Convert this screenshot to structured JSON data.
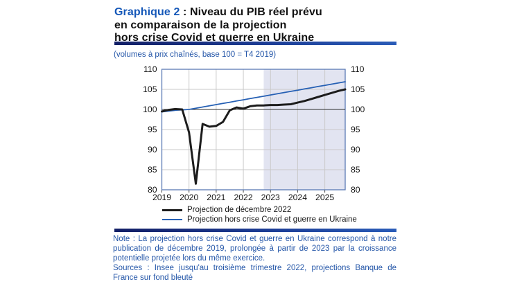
{
  "title": {
    "highlight": "Graphique 2",
    "line1_rest": " : Niveau du PIB réel prévu",
    "line2": "en comparaison de la projection",
    "line3": "hors crise Covid et guerre en Ukraine"
  },
  "subtitle": "(volumes à prix chaînés, base 100 = T4 2019)",
  "notes": {
    "note": "Note : La projection hors crise Covid et guerre en Ukraine correspond à notre publication de décembre 2019, prolongée à partir de 2023 par la croissance potentielle projetée lors du même exercice.",
    "sources": "Sources : Insee jusqu'au troisième trimestre 2022, projections Banque de France sur fond bleuté"
  },
  "colors": {
    "title_blue": "#1457b8",
    "text_blue": "#2456a8",
    "frame": "#5b7ab4",
    "grid": "#c9c9c9",
    "reference_line": "#2b2b2b",
    "shaded_region": "#e2e4f1",
    "bar_gradient_start": "#131f66",
    "bar_gradient_end": "#2a5cb8"
  },
  "chart_data": {
    "type": "line",
    "title": "Niveau du PIB réel prévu en comparaison de la projection hors crise Covid et guerre en Ukraine",
    "unit_note": "volumes à prix chaînés, base 100 = T4 2019",
    "xlim": [
      2019,
      2025.75
    ],
    "ylim": [
      80,
      110
    ],
    "xticks": [
      2019,
      2020,
      2021,
      2022,
      2023,
      2024,
      2025
    ],
    "yticks": [
      80,
      85,
      90,
      95,
      100,
      105,
      110
    ],
    "grid": true,
    "reference_line_y": 100,
    "y_axis_sides": "both",
    "legend_position": "bottom-left",
    "shaded_region": {
      "x_start": 2022.75,
      "x_end": 2025.75,
      "color": "#e2e4f1",
      "meaning": "projections sur fond bleuté (à partir du T4 2022)"
    },
    "x": [
      2019.0,
      2019.25,
      2019.5,
      2019.75,
      2020.0,
      2020.25,
      2020.5,
      2020.75,
      2021.0,
      2021.25,
      2021.5,
      2021.75,
      2022.0,
      2022.25,
      2022.5,
      2022.75,
      2023.0,
      2023.25,
      2023.5,
      2023.75,
      2024.0,
      2024.25,
      2024.5,
      2024.75,
      2025.0,
      2025.25,
      2025.5,
      2025.75
    ],
    "series": [
      {
        "name": "Projection de décembre 2022",
        "color": "#1c1c1c",
        "values": [
          99.5,
          99.9,
          100.1,
          100.0,
          94.3,
          81.5,
          96.4,
          95.7,
          95.9,
          96.9,
          99.8,
          100.5,
          100.2,
          100.8,
          101.0,
          101.0,
          101.1,
          101.1,
          101.2,
          101.3,
          101.7,
          102.1,
          102.6,
          103.1,
          103.6,
          104.1,
          104.6,
          105.0
        ]
      },
      {
        "name": "Projection hors crise Covid et guerre en Ukraine",
        "color": "#2660b4",
        "values": [
          99.4,
          99.6,
          99.8,
          99.9,
          100.0,
          100.3,
          100.6,
          100.9,
          101.2,
          101.5,
          101.8,
          102.1,
          102.4,
          102.7,
          103.0,
          103.3,
          103.6,
          103.9,
          104.2,
          104.5,
          104.8,
          105.1,
          105.4,
          105.7,
          106.0,
          106.3,
          106.6,
          106.9
        ]
      }
    ]
  }
}
